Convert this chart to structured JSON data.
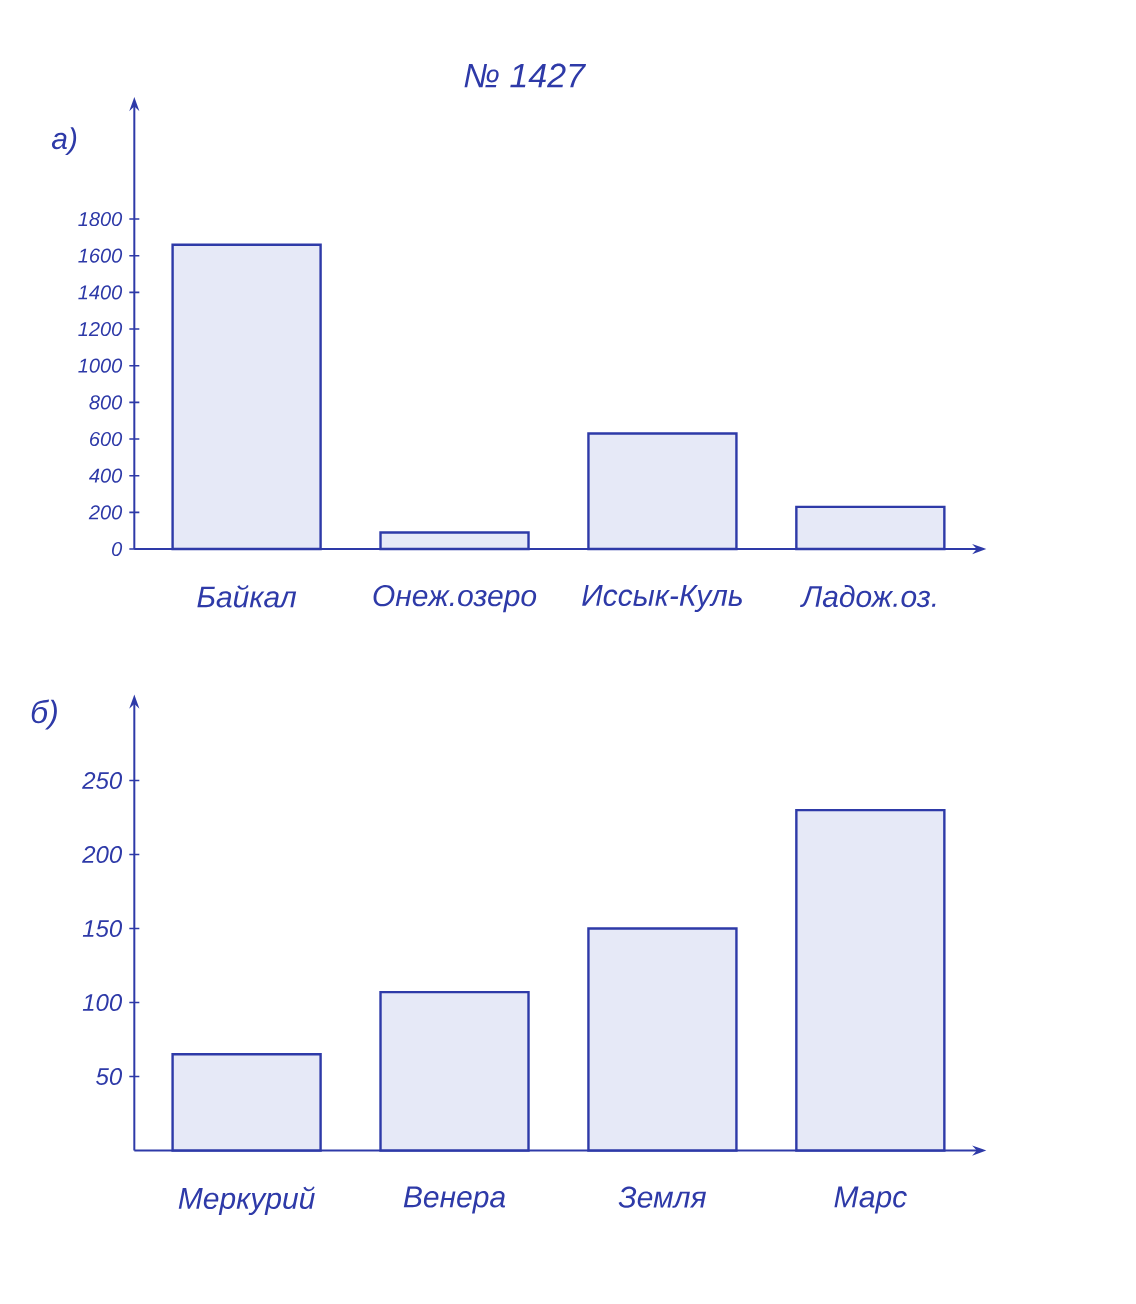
{
  "chart_data": [
    {
      "type": "bar",
      "title": "№ 1427",
      "subtitle": "а)",
      "categories": [
        "Байкал",
        "Онеж.озеро",
        "Иссык-Куль",
        "Ладож.оз."
      ],
      "values": [
        1660,
        90,
        630,
        230
      ],
      "color": "#e6e9f7",
      "ylim": [
        0,
        2400
      ],
      "yticks": [
        0,
        200,
        400,
        600,
        800,
        1000,
        1200,
        1400,
        1600,
        1800
      ]
    },
    {
      "type": "bar",
      "title": "б)",
      "categories": [
        "Меркурий",
        "Венера",
        "Земля",
        "Марс"
      ],
      "values": [
        65,
        107,
        150,
        230
      ],
      "color": "#e6e9f7",
      "ylim": [
        0,
        300
      ],
      "yticks": [
        50,
        100,
        150,
        200,
        250
      ]
    }
  ]
}
